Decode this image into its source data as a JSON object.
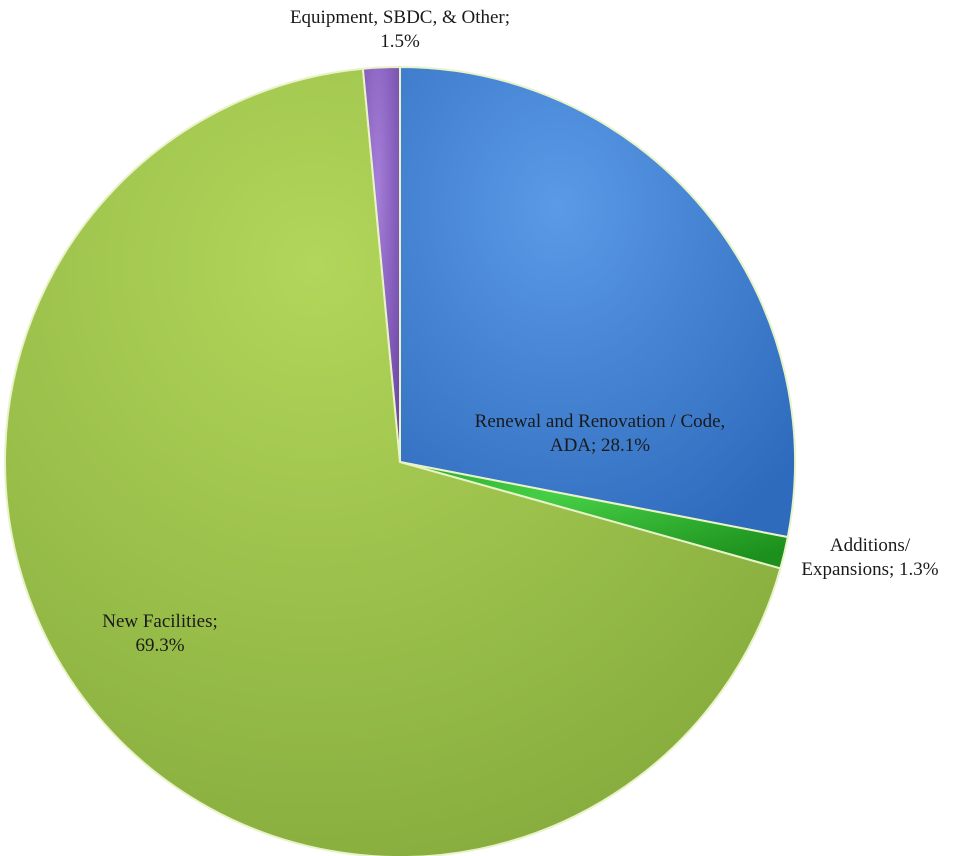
{
  "chart_data": {
    "type": "pie",
    "title": "",
    "slices": [
      {
        "label_line1": "Renewal and Renovation / Code,",
        "label_line2": "ADA; 28.1%",
        "category": "Renewal and Renovation / Code, ADA",
        "value": 28.1,
        "color": "#3f7fd4"
      },
      {
        "label_line1": "Additions/",
        "label_line2": "Expansions; 1.3%",
        "category": "Additions/ Expansions",
        "value": 1.3,
        "color": "#2fb52f"
      },
      {
        "label_line1": "New Facilities;",
        "label_line2": "69.3%",
        "category": "New Facilities",
        "value": 69.3,
        "color": "#9bc24c"
      },
      {
        "label_line1": "Equipment, SBDC, & Other;",
        "label_line2": "1.5%",
        "category": "Equipment, SBDC, & Other",
        "value": 1.5,
        "color": "#8e62c4"
      }
    ],
    "units": "%"
  }
}
